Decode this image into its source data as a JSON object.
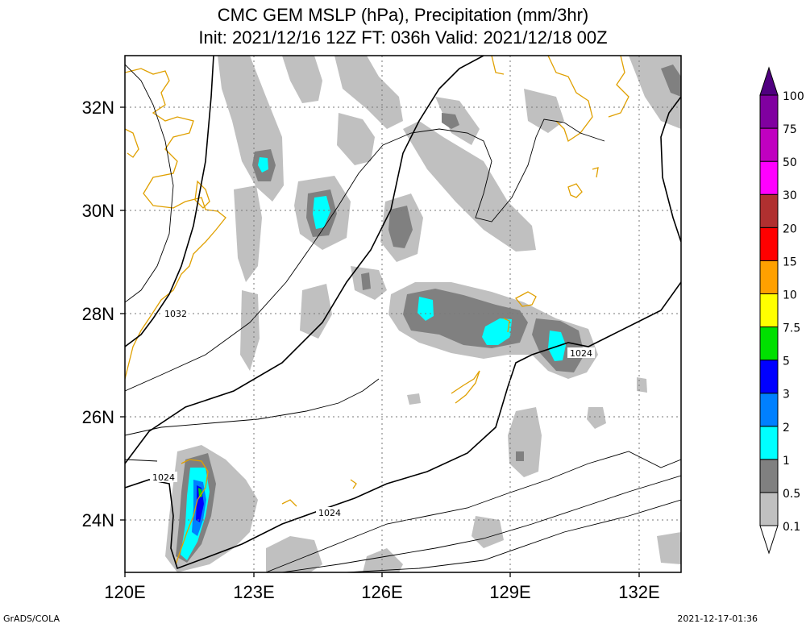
{
  "title": {
    "line1": "CMC GEM MSLP (hPa), Precipitation (mm/3hr)",
    "line2": "Init: 2021/12/16 12Z  FT: 036h  Valid: 2021/12/18 00Z"
  },
  "map": {
    "lon_labels": [
      "120E",
      "123E",
      "126E",
      "129E",
      "132E"
    ],
    "lat_labels": [
      "24N",
      "26N",
      "28N",
      "30N",
      "32N"
    ],
    "isobar_labels": [
      "1032",
      "1024",
      "1024",
      "1024"
    ]
  },
  "colorbar": {
    "labels": [
      "0.1",
      "0.5",
      "1",
      "2",
      "3",
      "5",
      "7.5",
      "10",
      "15",
      "20",
      "30",
      "50",
      "75",
      "100"
    ],
    "colors": [
      "#ffffff",
      "#c0c0c0",
      "#808080",
      "#00ffff",
      "#0080ff",
      "#0000ff",
      "#00e000",
      "#ffff00",
      "#ffa000",
      "#ff0000",
      "#b03030",
      "#ff00ff",
      "#c000c0",
      "#8000a0",
      "#500080"
    ]
  },
  "footer": {
    "left": "GrADS/COLA",
    "right": "2021-12-17-01:36"
  }
}
